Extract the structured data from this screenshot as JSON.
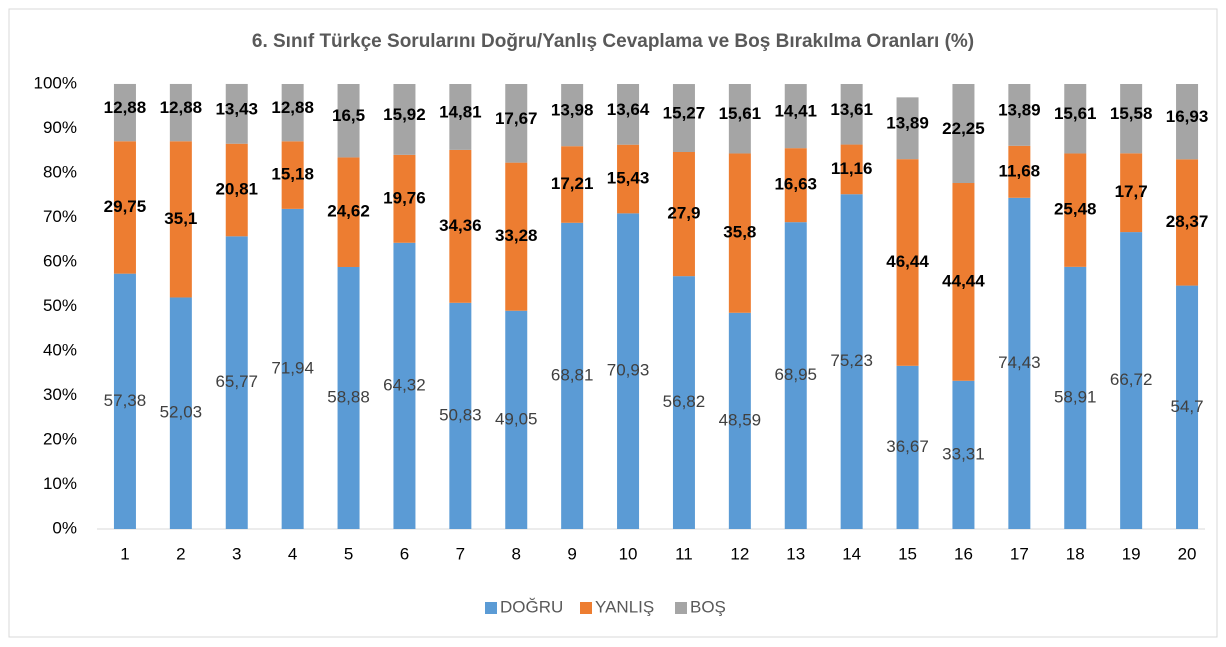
{
  "chart_data": {
    "type": "stacked_bar",
    "title": "6. Sınıf Türkçe Sorularını Doğru/Yanlış Cevaplama ve Boş Bırakılma Oranları (%)",
    "categories": [
      "1",
      "2",
      "3",
      "4",
      "5",
      "6",
      "7",
      "8",
      "9",
      "10",
      "11",
      "12",
      "13",
      "14",
      "15",
      "16",
      "17",
      "18",
      "19",
      "20"
    ],
    "series": [
      {
        "name": "DOĞRU",
        "color": "#5b9bd5",
        "values": [
          57.38,
          52.03,
          65.77,
          71.94,
          58.88,
          64.32,
          50.83,
          49.05,
          68.81,
          70.93,
          56.82,
          48.59,
          68.95,
          75.23,
          36.67,
          33.31,
          74.43,
          58.91,
          66.72,
          54.7
        ],
        "value_labels": [
          "57,38",
          "52,03",
          "65,77",
          "71,94",
          "58,88",
          "64,32",
          "50,83",
          "49,05",
          "68,81",
          "70,93",
          "56,82",
          "48,59",
          "68,95",
          "75,23",
          "36,67",
          "33,31",
          "74,43",
          "58,91",
          "66,72",
          "54,7"
        ]
      },
      {
        "name": "YANLIŞ",
        "color": "#ed7d31",
        "values": [
          29.75,
          35.1,
          20.81,
          15.18,
          24.62,
          19.76,
          34.36,
          33.28,
          17.21,
          15.43,
          27.9,
          35.8,
          16.63,
          11.16,
          46.44,
          44.44,
          11.68,
          25.48,
          17.7,
          28.37
        ],
        "value_labels": [
          "29,75",
          "35,1",
          "20,81",
          "15,18",
          "24,62",
          "19,76",
          "34,36",
          "33,28",
          "17,21",
          "15,43",
          "27,9",
          "35,8",
          "16,63",
          "11,16",
          "46,44",
          "44,44",
          "11,68",
          "25,48",
          "17,7",
          "28,37"
        ]
      },
      {
        "name": "BOŞ",
        "color": "#a5a5a5",
        "values": [
          12.88,
          12.88,
          13.43,
          12.88,
          16.5,
          15.92,
          14.81,
          17.67,
          13.98,
          13.64,
          15.27,
          15.61,
          14.41,
          13.61,
          13.89,
          22.25,
          13.89,
          15.61,
          15.58,
          16.93
        ],
        "value_labels": [
          "12,88",
          "12,88",
          "13,43",
          "12,88",
          "16,5",
          "15,92",
          "14,81",
          "17,67",
          "13,98",
          "13,64",
          "15,27",
          "15,61",
          "14,41",
          "13,61",
          "13,89",
          "22,25",
          "13,89",
          "15,61",
          "15,58",
          "16,93"
        ]
      }
    ],
    "ylim": [
      0,
      100
    ],
    "yticks": [
      {
        "value": 0,
        "label": "0%"
      },
      {
        "value": 10,
        "label": "10%"
      },
      {
        "value": 20,
        "label": "20%"
      },
      {
        "value": 30,
        "label": "30%"
      },
      {
        "value": 40,
        "label": "40%"
      },
      {
        "value": 50,
        "label": "50%"
      },
      {
        "value": 60,
        "label": "60%"
      },
      {
        "value": 70,
        "label": "70%"
      },
      {
        "value": 80,
        "label": "80%"
      },
      {
        "value": 90,
        "label": "90%"
      },
      {
        "value": 100,
        "label": "100%"
      }
    ],
    "grid": false,
    "legend": "bottom"
  }
}
